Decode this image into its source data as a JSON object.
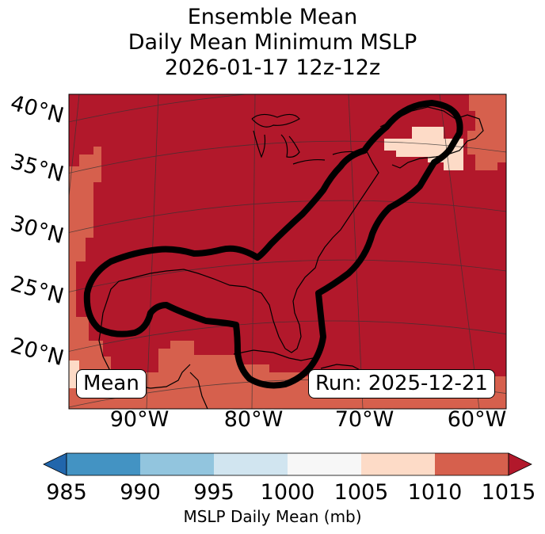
{
  "title": {
    "line1": "Ensemble Mean",
    "line2": "Daily Mean Minimum MSLP",
    "line3": "2026-01-17 12z-12z"
  },
  "map": {
    "lat_labels": [
      "40°N",
      "35°N",
      "30°N",
      "25°N",
      "20°N"
    ],
    "lon_labels": [
      "90°W",
      "80°W",
      "70°W",
      "60°W"
    ],
    "mean_label": "Mean",
    "run_label": "Run: 2025-12-21",
    "contour_color": "#000000"
  },
  "colorbar": {
    "label": "MSLP Daily Mean (mb)",
    "ticks": [
      "985",
      "990",
      "995",
      "1000",
      "1005",
      "1010",
      "1015"
    ],
    "colors": [
      "#2166ac",
      "#4393c3",
      "#92c5de",
      "#d1e5f0",
      "#f7f7f7",
      "#fddbc7",
      "#d6604d",
      "#b2182b"
    ]
  }
}
